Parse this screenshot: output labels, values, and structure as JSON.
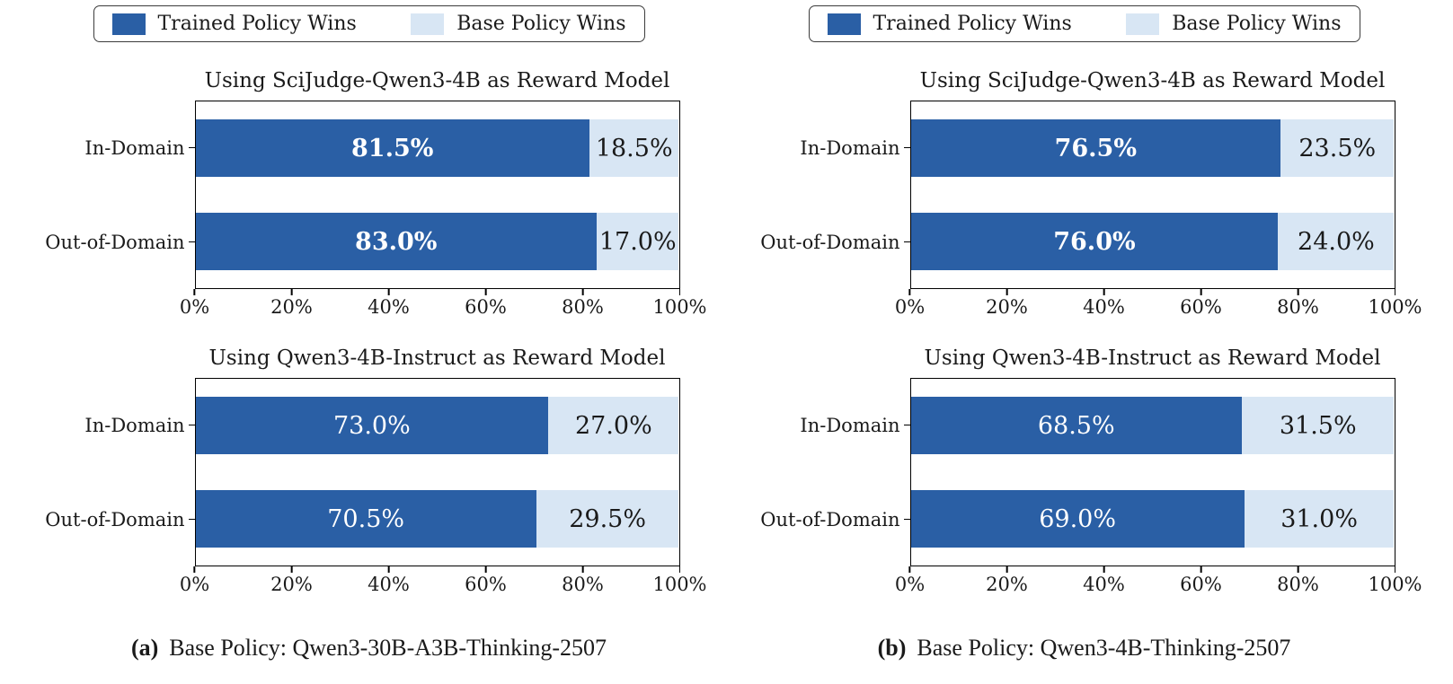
{
  "figure": {
    "background": "#ffffff"
  },
  "colors": {
    "trained": "#2a5fa5",
    "base": "#d8e6f4",
    "axis": "#000000",
    "text": "#1a1a1a",
    "value_on_trained": "#ffffff",
    "value_on_base": "#1a1a1a"
  },
  "legend": {
    "items": [
      {
        "label": "Trained Policy Wins",
        "swatch": "trained-color-swatch"
      },
      {
        "label": "Base Policy Wins",
        "swatch": "base-color-swatch"
      }
    ]
  },
  "x_axis": {
    "ticks": [
      "0%",
      "20%",
      "40%",
      "60%",
      "80%",
      "100%"
    ],
    "min": 0,
    "max": 100
  },
  "panels": [
    {
      "marker": "(a)",
      "caption": "Base Policy: Qwen3-30B-A3B-Thinking-2507"
    },
    {
      "marker": "(b)",
      "caption": "Base Policy: Qwen3-4B-Thinking-2507"
    }
  ],
  "chart_data": [
    {
      "type": "bar",
      "orientation": "horizontal",
      "stacked": true,
      "panel": "a",
      "title": "Using SciJudge-Qwen3-4B as Reward Model",
      "categories": [
        "In-Domain",
        "Out-of-Domain"
      ],
      "series": [
        {
          "name": "Trained Policy Wins",
          "values": [
            81.5,
            83.0
          ]
        },
        {
          "name": "Base Policy Wins",
          "values": [
            18.5,
            17.0
          ]
        }
      ],
      "labels": {
        "trained": [
          "81.5%",
          "83.0%"
        ],
        "base": [
          "18.5%",
          "17.0%"
        ]
      },
      "trained_label_bold": true,
      "xlim": [
        0,
        100
      ],
      "x_ticks": [
        "0%",
        "20%",
        "40%",
        "60%",
        "80%",
        "100%"
      ],
      "grid": false,
      "legend_position": "top"
    },
    {
      "type": "bar",
      "orientation": "horizontal",
      "stacked": true,
      "panel": "a",
      "title": "Using Qwen3-4B-Instruct as Reward Model",
      "categories": [
        "In-Domain",
        "Out-of-Domain"
      ],
      "series": [
        {
          "name": "Trained Policy Wins",
          "values": [
            73.0,
            70.5
          ]
        },
        {
          "name": "Base Policy Wins",
          "values": [
            27.0,
            29.5
          ]
        }
      ],
      "labels": {
        "trained": [
          "73.0%",
          "70.5%"
        ],
        "base": [
          "27.0%",
          "29.5%"
        ]
      },
      "trained_label_bold": false,
      "xlim": [
        0,
        100
      ],
      "x_ticks": [
        "0%",
        "20%",
        "40%",
        "60%",
        "80%",
        "100%"
      ],
      "grid": false,
      "legend_position": "top"
    },
    {
      "type": "bar",
      "orientation": "horizontal",
      "stacked": true,
      "panel": "b",
      "title": "Using SciJudge-Qwen3-4B as Reward Model",
      "categories": [
        "In-Domain",
        "Out-of-Domain"
      ],
      "series": [
        {
          "name": "Trained Policy Wins",
          "values": [
            76.5,
            76.0
          ]
        },
        {
          "name": "Base Policy Wins",
          "values": [
            23.5,
            24.0
          ]
        }
      ],
      "labels": {
        "trained": [
          "76.5%",
          "76.0%"
        ],
        "base": [
          "23.5%",
          "24.0%"
        ]
      },
      "trained_label_bold": true,
      "xlim": [
        0,
        100
      ],
      "x_ticks": [
        "0%",
        "20%",
        "40%",
        "60%",
        "80%",
        "100%"
      ],
      "grid": false,
      "legend_position": "top"
    },
    {
      "type": "bar",
      "orientation": "horizontal",
      "stacked": true,
      "panel": "b",
      "title": "Using Qwen3-4B-Instruct as Reward Model",
      "categories": [
        "In-Domain",
        "Out-of-Domain"
      ],
      "series": [
        {
          "name": "Trained Policy Wins",
          "values": [
            68.5,
            69.0
          ]
        },
        {
          "name": "Base Policy Wins",
          "values": [
            31.5,
            31.0
          ]
        }
      ],
      "labels": {
        "trained": [
          "68.5%",
          "69.0%"
        ],
        "base": [
          "31.5%",
          "31.0%"
        ]
      },
      "trained_label_bold": false,
      "xlim": [
        0,
        100
      ],
      "x_ticks": [
        "0%",
        "20%",
        "40%",
        "60%",
        "80%",
        "100%"
      ],
      "grid": false,
      "legend_position": "top"
    }
  ]
}
